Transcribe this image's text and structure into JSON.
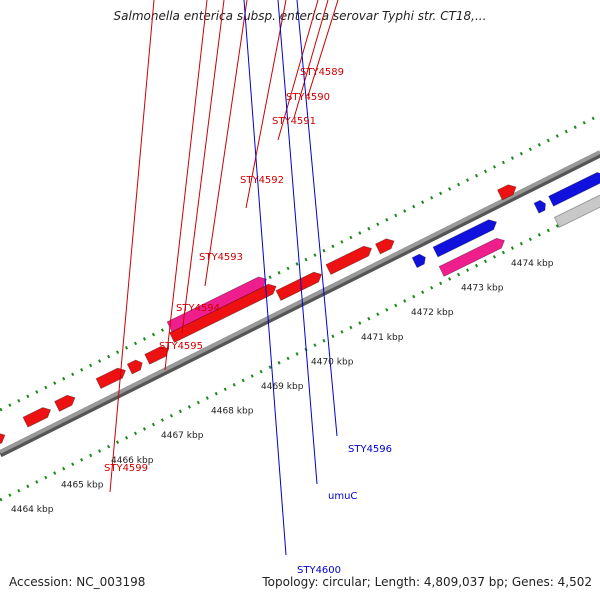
{
  "header": {
    "title": "Salmonella enterica subsp. enterica serovar Typhi str. CT18,..."
  },
  "footer": {
    "accession": "Accession: NC_003198",
    "summary": "Topology: circular; Length: 4,809,037 bp; Genes: 4,502"
  },
  "colors": {
    "gene_red": "#ee1111",
    "gene_pink": "#ee1e8c",
    "gene_blue": "#1111dd",
    "gene_gray": "#c8c8c8",
    "backbone": "#777777",
    "tick_green": "#1a8a1a",
    "label_red": "#cc0000",
    "label_blue": "#0000cc"
  },
  "scale_labels": [
    "4464 kbp",
    "4465 kbp",
    "4466 kbp",
    "4467 kbp",
    "4468 kbp",
    "4469 kbp",
    "4470 kbp",
    "4471 kbp",
    "4472 kbp",
    "4473 kbp",
    "4474 kbp"
  ],
  "gene_labels": [
    {
      "id": "STY4589",
      "text": "STY4589",
      "color": "red"
    },
    {
      "id": "STY4590",
      "text": "STY4590",
      "color": "red"
    },
    {
      "id": "STY4591",
      "text": "STY4591",
      "color": "red"
    },
    {
      "id": "STY4592",
      "text": "STY4592",
      "color": "red"
    },
    {
      "id": "STY4593",
      "text": "STY4593",
      "color": "red"
    },
    {
      "id": "STY4594",
      "text": "STY4594",
      "color": "red"
    },
    {
      "id": "STY4595",
      "text": "STY4595",
      "color": "red"
    },
    {
      "id": "STY4599",
      "text": "STY4599",
      "color": "red"
    },
    {
      "id": "STY4596",
      "text": "STY4596",
      "color": "blue"
    },
    {
      "id": "umuC",
      "text": "umuC",
      "color": "blue"
    },
    {
      "id": "STY4600",
      "text": "STY4600",
      "color": "blue"
    }
  ]
}
